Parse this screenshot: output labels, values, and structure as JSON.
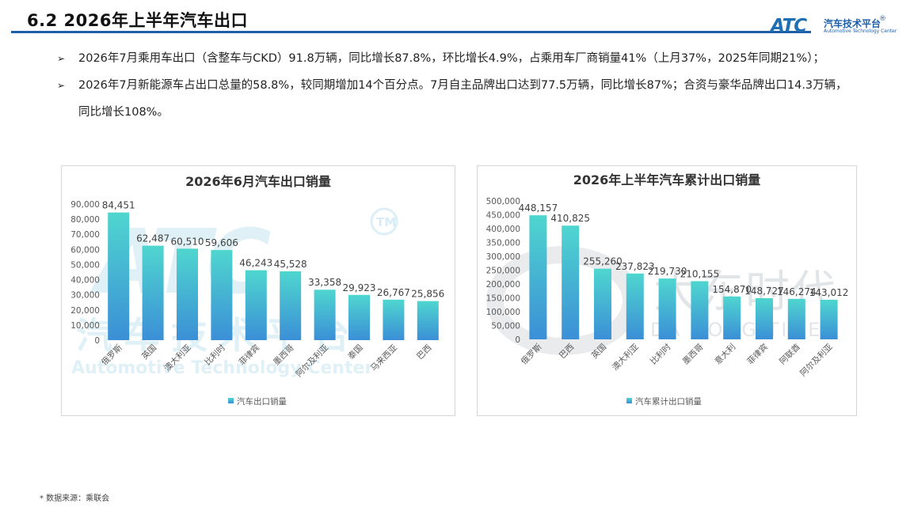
{
  "header": {
    "title": "6.2 2026年上半年汽车出口",
    "logo": {
      "mark": "ATC",
      "cn": "汽车技术平台",
      "en": "Automotive Technology Center",
      "registered": "®"
    }
  },
  "bullets": [
    "2026年7月乘用车出口（含整车与CKD）91.8万辆，同比增长87.8%，环比增长4.9%，占乘用车厂商销量41%（上月37%，2025年同期21%）；",
    "2026年7月新能源车占出口总量的58.8%，较同期增加14个百分点。7月自主品牌出口达到77.5万辆，同比增长87%；合资与豪华品牌出口14.3万辆，同比增长108%。"
  ],
  "bullet_marker": "➢",
  "watermarks": {
    "left": {
      "mark": "ATC",
      "tm": "TM",
      "cn": "汽车技术平台",
      "en": "Automotive Technology Center"
    },
    "right": {
      "cn": "大东时代",
      "en": "DA DONG TIMES"
    }
  },
  "chart_data": [
    {
      "type": "bar",
      "title": "2026年6月汽车出口销量",
      "categories": [
        "俄罗斯",
        "英国",
        "澳大利亚",
        "比利时",
        "菲律宾",
        "墨西哥",
        "阿尔及利亚",
        "泰国",
        "马来西亚",
        "巴西"
      ],
      "series": [
        {
          "name": "汽车出口销量",
          "values": [
            84451,
            62487,
            60510,
            59606,
            46243,
            45528,
            33358,
            29923,
            26767,
            25856
          ]
        }
      ],
      "data_labels": [
        "84,451",
        "62,487",
        "60,510",
        "59,606",
        "46,243",
        "45,528",
        "33,358",
        "29,923",
        "26,767",
        "25,856"
      ],
      "ylim": [
        0,
        90000
      ],
      "yticks": [
        "0",
        "10,000",
        "20,000",
        "30,000",
        "40,000",
        "50,000",
        "60,000",
        "70,000",
        "80,000",
        "90,000"
      ],
      "grid": false,
      "legend": "bottom",
      "colors": {
        "bar_top": "#4fd6cf",
        "bar_bottom": "#3b8fd6"
      }
    },
    {
      "type": "bar",
      "title": "2026年上半年汽车累计出口销量",
      "categories": [
        "俄罗斯",
        "巴西",
        "英国",
        "澳大利亚",
        "比利时",
        "墨西哥",
        "意大利",
        "菲律宾",
        "阿联酋",
        "阿尔及利亚"
      ],
      "series": [
        {
          "name": "汽车累计出口销量",
          "values": [
            448157,
            410825,
            255260,
            237823,
            219730,
            210155,
            154870,
            148727,
            146274,
            143012
          ]
        }
      ],
      "data_labels": [
        "448,157",
        "410,825",
        "255,260",
        "237,823",
        "219,730",
        "210,155",
        "154,870",
        "148,727",
        "146,274",
        "143,012"
      ],
      "ylim": [
        0,
        500000
      ],
      "yticks": [
        "0",
        "50,000",
        "100,000",
        "150,000",
        "200,000",
        "250,000",
        "300,000",
        "350,000",
        "400,000",
        "450,000",
        "500,000"
      ],
      "grid": false,
      "legend": "bottom",
      "colors": {
        "bar_top": "#4fd6cf",
        "bar_bottom": "#3b8fd6"
      }
    }
  ],
  "source": "* 数据来源：乘联会"
}
